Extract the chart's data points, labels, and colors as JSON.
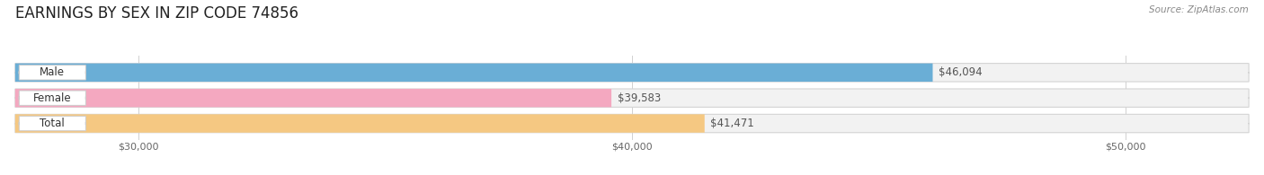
{
  "title": "EARNINGS BY SEX IN ZIP CODE 74856",
  "source": "Source: ZipAtlas.com",
  "categories": [
    "Male",
    "Female",
    "Total"
  ],
  "values": [
    46094,
    39583,
    41471
  ],
  "bar_colors": [
    "#6aaed6",
    "#f4a8c0",
    "#f5c882"
  ],
  "bar_edge_colors": [
    "#9ecae1",
    "#f9c4d2",
    "#fdd9a0"
  ],
  "value_labels": [
    "$46,094",
    "$39,583",
    "$41,471"
  ],
  "xmin": 27500,
  "xmax": 52500,
  "xticks": [
    30000,
    40000,
    50000
  ],
  "xtick_labels": [
    "$30,000",
    "$40,000",
    "$50,000"
  ],
  "background_color": "#ffffff",
  "title_fontsize": 12,
  "label_fontsize": 8.5,
  "value_fontsize": 8.5,
  "tick_fontsize": 8
}
